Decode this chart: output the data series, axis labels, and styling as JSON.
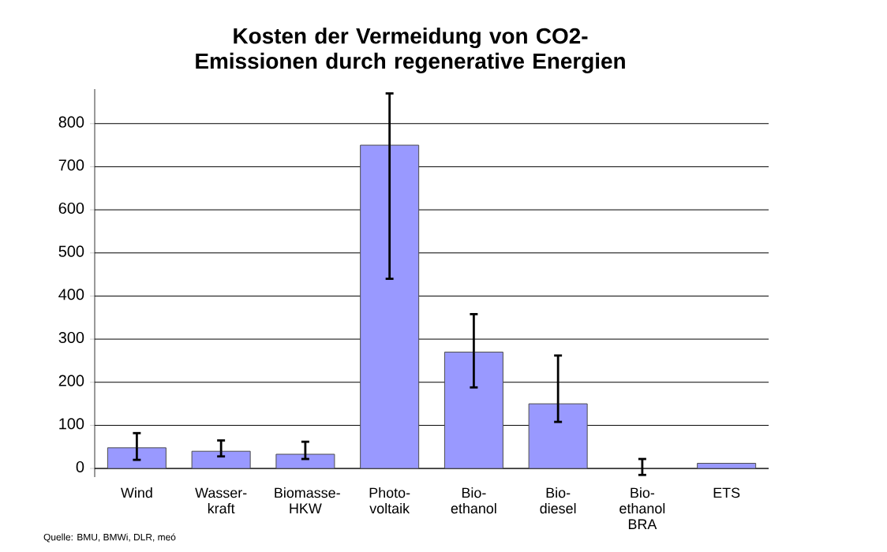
{
  "chart_data": {
    "type": "bar",
    "title": "Kosten der Vermeidung von CO2-Emissionen durch regenerative Energien",
    "categories": [
      "Wind",
      "Wasser- kraft",
      "Biomasse- HKW",
      "Photo- voltaik",
      "Bio- ethanol",
      "Bio- diesel",
      "Bio- ethanol BRA",
      "ETS"
    ],
    "values": [
      48,
      40,
      33,
      750,
      270,
      150,
      0,
      12
    ],
    "errors": [
      [
        20,
        82
      ],
      [
        28,
        65
      ],
      [
        22,
        62
      ],
      [
        440,
        870
      ],
      [
        188,
        358
      ],
      [
        108,
        262
      ],
      [
        -15,
        22
      ],
      null
    ],
    "color": "#9999ff",
    "ylim": [
      -20,
      880
    ],
    "yticks": [
      0,
      100,
      200,
      300,
      400,
      500,
      600,
      700,
      800
    ],
    "grid": "y",
    "annotations": [
      "Quelle: BMU, BMWi, DLR, meó"
    ]
  }
}
